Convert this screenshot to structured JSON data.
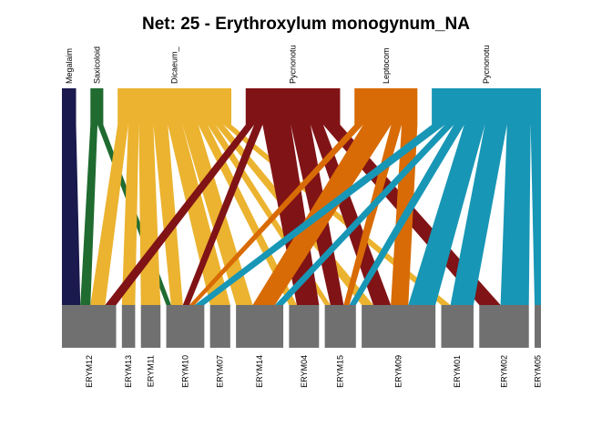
{
  "chart_data": {
    "type": "bipartite-network",
    "title": "Net: 25 - Erythroxylum monogynum_NA",
    "higher_nodes": [
      {
        "name": "Megalaima",
        "label": "Megalaim",
        "color": "#1a1a4e",
        "share": 0.022
      },
      {
        "name": "Saxicoloides",
        "label": "Saxicoloid",
        "color": "#1f6b30",
        "share": 0.02
      },
      {
        "name": "Dicaeum",
        "label": "Dicaeum_",
        "color": "#ebb32f",
        "share": 0.177
      },
      {
        "name": "Pycnonotus (1)",
        "label": "Pycnonotu",
        "color": "#801316",
        "share": 0.147
      },
      {
        "name": "Leptocoma",
        "label": "Leptocom",
        "color": "#d86b05",
        "share": 0.098
      },
      {
        "name": "Pycnonotus (2)",
        "label": "Pycnonotu",
        "color": "#1896b5",
        "share": 0.17
      }
    ],
    "lower_nodes": [
      {
        "name": "ERYM12",
        "share": 0.094
      },
      {
        "name": "ERYM13",
        "share": 0.023
      },
      {
        "name": "ERYM11",
        "share": 0.034
      },
      {
        "name": "ERYM10",
        "share": 0.066
      },
      {
        "name": "ERYM07",
        "share": 0.035
      },
      {
        "name": "ERYM14",
        "share": 0.082
      },
      {
        "name": "ERYM04",
        "share": 0.052
      },
      {
        "name": "ERYM15",
        "share": 0.054
      },
      {
        "name": "ERYM09",
        "share": 0.128
      },
      {
        "name": "ERYM01",
        "share": 0.056
      },
      {
        "name": "ERYM02",
        "share": 0.086
      },
      {
        "name": "ERYM05",
        "share": 0.011
      }
    ],
    "links": [
      {
        "from": "Megalaima",
        "to": "ERYM12",
        "weight": 1.0
      },
      {
        "from": "Saxicoloides",
        "to": "ERYM12",
        "weight": 0.55
      },
      {
        "from": "Saxicoloides",
        "to": "ERYM10",
        "weight": 0.45
      },
      {
        "from": "Dicaeum",
        "to": "ERYM12",
        "weight": 0.8
      },
      {
        "from": "Dicaeum",
        "to": "ERYM13",
        "weight": 0.8
      },
      {
        "from": "Dicaeum",
        "to": "ERYM11",
        "weight": 1.1
      },
      {
        "from": "Dicaeum",
        "to": "ERYM10",
        "weight": 1.1
      },
      {
        "from": "Dicaeum",
        "to": "ERYM07",
        "weight": 1.1
      },
      {
        "from": "Dicaeum",
        "to": "ERYM14",
        "weight": 1.2
      },
      {
        "from": "Dicaeum",
        "to": "ERYM04",
        "weight": 0.7
      },
      {
        "from": "Dicaeum",
        "to": "ERYM15",
        "weight": 0.6
      },
      {
        "from": "Dicaeum",
        "to": "ERYM09",
        "weight": 0.6
      },
      {
        "from": "Dicaeum",
        "to": "ERYM01",
        "weight": 0.6
      },
      {
        "from": "Pycnonotus (1)",
        "to": "ERYM12",
        "weight": 0.6
      },
      {
        "from": "Pycnonotus (1)",
        "to": "ERYM10",
        "weight": 0.6
      },
      {
        "from": "Pycnonotus (1)",
        "to": "ERYM04",
        "weight": 2.0
      },
      {
        "from": "Pycnonotus (1)",
        "to": "ERYM15",
        "weight": 1.4
      },
      {
        "from": "Pycnonotus (1)",
        "to": "ERYM09",
        "weight": 0.9
      },
      {
        "from": "Pycnonotus (1)",
        "to": "ERYM02",
        "weight": 1.2
      },
      {
        "from": "Leptocoma",
        "to": "ERYM10",
        "weight": 0.5
      },
      {
        "from": "Leptocoma",
        "to": "ERYM14",
        "weight": 1.6
      },
      {
        "from": "Leptocoma",
        "to": "ERYM15",
        "weight": 0.6
      },
      {
        "from": "Leptocoma",
        "to": "ERYM09",
        "weight": 0.9
      },
      {
        "from": "Pycnonotus (2)",
        "to": "ERYM10",
        "weight": 0.9
      },
      {
        "from": "Pycnonotus (2)",
        "to": "ERYM14",
        "weight": 0.6
      },
      {
        "from": "Pycnonotus (2)",
        "to": "ERYM15",
        "weight": 0.7
      },
      {
        "from": "Pycnonotus (2)",
        "to": "ERYM09",
        "weight": 1.4
      },
      {
        "from": "Pycnonotus (2)",
        "to": "ERYM01",
        "weight": 1.5
      },
      {
        "from": "Pycnonotus (2)",
        "to": "ERYM02",
        "weight": 1.6
      },
      {
        "from": "Pycnonotus (2)",
        "to": "ERYM05",
        "weight": 0.7
      }
    ],
    "lower_node_color": "#707070"
  }
}
